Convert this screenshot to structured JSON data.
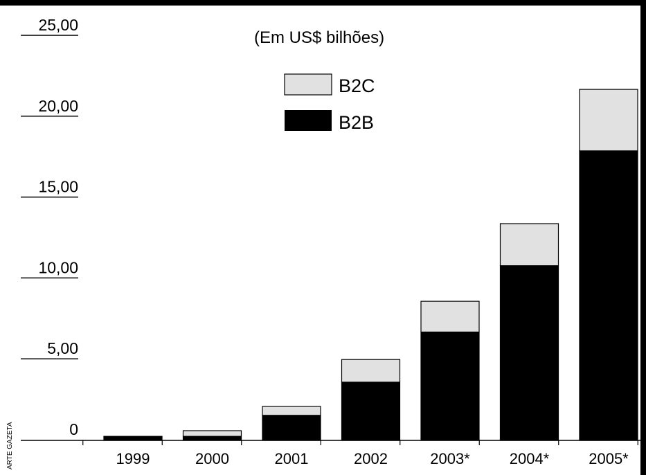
{
  "chart_data": {
    "type": "bar",
    "stacked": true,
    "subtitle": "(Em US$ bilhões)",
    "categories": [
      "1999",
      "2000",
      "2001",
      "2002",
      "2003*",
      "2004*",
      "2005*"
    ],
    "series": [
      {
        "name": "B2B",
        "values": [
          0.2,
          0.25,
          1.55,
          3.6,
          6.7,
          10.8,
          17.9
        ],
        "color": "#000000"
      },
      {
        "name": "B2C",
        "values": [
          0.05,
          0.35,
          0.55,
          1.4,
          1.9,
          2.6,
          3.8
        ],
        "color": "#e1e1e1"
      }
    ],
    "yticks": [
      "0",
      "5,00",
      "10,00",
      "15,00",
      "20,00",
      "25,00"
    ],
    "ylim": [
      0,
      25
    ],
    "legend_position": "top-center",
    "grid": false,
    "credit": "ARTE GAZETA"
  }
}
